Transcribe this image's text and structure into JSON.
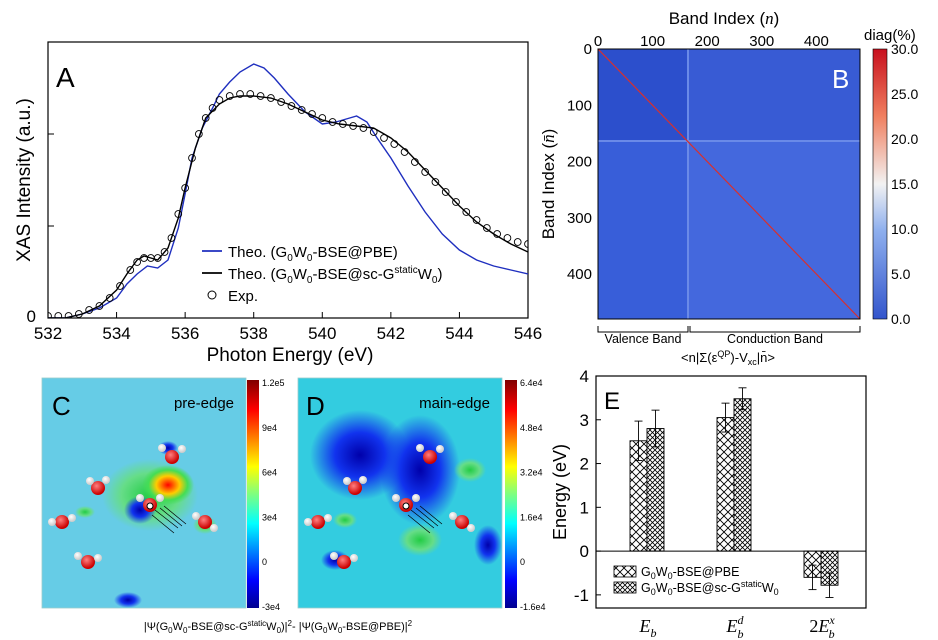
{
  "colors": {
    "theo_pbe": "#1f2fbf",
    "theo_sc": "#000000",
    "exp": "#000000",
    "heat_bg": "#3356d6",
    "heat_high": "#c8102e"
  },
  "chart_data": [
    {
      "panel": "A",
      "type": "line",
      "xlabel": "Photon Energy (eV)",
      "ylabel": "XAS Intensity (a.u.)",
      "xlim": [
        532,
        546
      ],
      "ylim": [
        0,
        1.38
      ],
      "xticks": [
        "532",
        "534",
        "536",
        "538",
        "540",
        "542",
        "544",
        "546"
      ],
      "yticks": [
        "0"
      ],
      "grid": false,
      "legend_position": "lower-right",
      "series": [
        {
          "name": "Theo. (G0W0-BSE@PBE)",
          "name_parts": {
            "a": "Theo. (G",
            "s1": "0",
            "b": "W",
            "s2": "0",
            "c": "-BSE@PBE)"
          },
          "style": "line",
          "x": [
            532.0,
            532.5,
            533.0,
            533.5,
            534.0,
            534.3,
            534.6,
            534.9,
            535.2,
            535.5,
            535.8,
            536.0,
            536.2,
            536.5,
            536.8,
            537.0,
            537.3,
            537.6,
            538.0,
            538.3,
            538.6,
            539.0,
            539.5,
            540.0,
            540.4,
            540.8,
            541.0,
            541.3,
            541.6,
            542.0,
            542.5,
            543.0,
            543.5,
            544.0,
            544.5,
            545.0,
            545.5,
            546.0
          ],
          "y": [
            0.0,
            0.0,
            0.02,
            0.05,
            0.1,
            0.17,
            0.22,
            0.26,
            0.25,
            0.29,
            0.45,
            0.62,
            0.8,
            0.95,
            1.05,
            1.12,
            1.18,
            1.23,
            1.27,
            1.25,
            1.2,
            1.12,
            1.03,
            0.97,
            0.98,
            1.0,
            1.01,
            0.98,
            0.9,
            0.8,
            0.66,
            0.53,
            0.42,
            0.34,
            0.29,
            0.26,
            0.24,
            0.22
          ]
        },
        {
          "name": "Theo. (G0W0-BSE@sc-GstaticW0)",
          "name_parts": {
            "a": "Theo. (G",
            "s1": "0",
            "b": "W",
            "s2": "0",
            "c": "-BSE@sc-G",
            "sup": "static",
            "d": "W",
            "s3": "0",
            "e": ")"
          },
          "style": "line",
          "x": [
            532.0,
            532.5,
            533.0,
            533.5,
            534.0,
            534.3,
            534.6,
            534.8,
            535.0,
            535.2,
            535.5,
            535.8,
            536.0,
            536.3,
            536.6,
            537.0,
            537.3,
            537.6,
            538.0,
            538.5,
            539.0,
            539.5,
            540.0,
            540.5,
            541.0,
            541.5,
            542.0,
            542.5,
            543.0,
            543.5,
            544.0,
            544.5,
            545.0,
            545.5,
            546.0
          ],
          "y": [
            0.0,
            0.0,
            0.02,
            0.06,
            0.14,
            0.22,
            0.29,
            0.31,
            0.3,
            0.29,
            0.35,
            0.5,
            0.65,
            0.85,
            1.0,
            1.07,
            1.1,
            1.11,
            1.11,
            1.1,
            1.07,
            1.03,
            0.99,
            0.97,
            0.96,
            0.95,
            0.9,
            0.83,
            0.74,
            0.65,
            0.56,
            0.48,
            0.42,
            0.37,
            0.33
          ]
        },
        {
          "name": "Exp.",
          "style": "markers",
          "x": [
            532.0,
            532.3,
            532.6,
            532.9,
            533.2,
            533.5,
            533.8,
            534.1,
            534.4,
            534.6,
            534.8,
            535.0,
            535.2,
            535.4,
            535.6,
            535.8,
            536.0,
            536.2,
            536.4,
            536.6,
            536.8,
            537.0,
            537.3,
            537.6,
            537.9,
            538.2,
            538.5,
            538.8,
            539.1,
            539.4,
            539.7,
            540.0,
            540.3,
            540.6,
            540.9,
            541.2,
            541.5,
            541.8,
            542.1,
            542.4,
            542.7,
            543.0,
            543.3,
            543.6,
            543.9,
            544.2,
            544.5,
            544.8,
            545.1,
            545.4,
            545.7,
            546.0
          ],
          "y": [
            0.01,
            0.01,
            0.01,
            0.02,
            0.04,
            0.06,
            0.1,
            0.16,
            0.24,
            0.28,
            0.3,
            0.3,
            0.3,
            0.33,
            0.4,
            0.52,
            0.65,
            0.8,
            0.92,
            1.0,
            1.05,
            1.09,
            1.11,
            1.12,
            1.12,
            1.11,
            1.1,
            1.08,
            1.06,
            1.04,
            1.02,
            1.0,
            0.98,
            0.97,
            0.96,
            0.95,
            0.93,
            0.9,
            0.87,
            0.83,
            0.78,
            0.73,
            0.68,
            0.63,
            0.58,
            0.53,
            0.49,
            0.45,
            0.42,
            0.4,
            0.38,
            0.37
          ]
        }
      ]
    },
    {
      "panel": "B",
      "type": "heatmap",
      "title": "Band Index (",
      "title_italic": "n",
      "title_end": ")",
      "ylabel": "Band Index (",
      "ylabel_italic": "n̄",
      "ylabel_end": ")",
      "xlim": [
        0,
        480
      ],
      "ylim": [
        0,
        480
      ],
      "xticks": [
        "0",
        "100",
        "200",
        "300",
        "400"
      ],
      "yticks": [
        "0",
        "100",
        "200",
        "300",
        "400"
      ],
      "colorbar_title": "diag(%)",
      "colorbar_ticks": [
        "30.0",
        "25.0",
        "20.0",
        "15.0",
        "10.0",
        "5.0",
        "0.0"
      ],
      "colorbar_range": [
        0,
        30
      ],
      "valence_label": "Valence Band",
      "conduction_label": "Conduction Band",
      "band_boundary": 165,
      "bottom_formula": "<n|Σ(ε",
      "bottom_formula_sup": "QP",
      "bottom_formula_mid": ")-V",
      "bottom_formula_sub": "xc",
      "bottom_formula_end": "|n̄>"
    },
    {
      "panel": "C",
      "type": "heatmap",
      "annotation": "pre-edge",
      "colorbar_ticks": [
        "1.2e5",
        "9e4",
        "6e4",
        "3e4",
        "0",
        "-3e4"
      ]
    },
    {
      "panel": "D",
      "type": "heatmap",
      "annotation": "main-edge",
      "colorbar_ticks": [
        "6.4e4",
        "4.8e4",
        "3.2e4",
        "1.6e4",
        "0",
        "-1.6e4"
      ]
    },
    {
      "panel": "E",
      "type": "bar",
      "ylabel": "Energy (eV)",
      "ylim": [
        -1.3,
        4
      ],
      "yticks": [
        "4",
        "3",
        "2",
        "1",
        "0",
        "-1"
      ],
      "categories": [
        "E_b",
        "E_b^d",
        "2E_b^x"
      ],
      "category_labels": [
        {
          "base": "E",
          "sub": "b",
          "sup": "",
          "prefix": ""
        },
        {
          "base": "E",
          "sub": "b",
          "sup": "d",
          "prefix": ""
        },
        {
          "base": "E",
          "sub": "b",
          "sup": "x",
          "prefix": "2"
        }
      ],
      "legend_position": "lower-left",
      "series": [
        {
          "name": "G0W0-BSE@PBE",
          "name_parts": {
            "a": "G",
            "s1": "0",
            "b": "W",
            "s2": "0",
            "c": "-BSE@PBE"
          },
          "values": [
            2.52,
            3.05,
            -0.6
          ],
          "errors": [
            0.45,
            0.33,
            0.28
          ]
        },
        {
          "name": "G0W0-BSE@sc-GstaticW0",
          "name_parts": {
            "a": "G",
            "s1": "0",
            "b": "W",
            "s2": "0",
            "c": "-BSE@sc-G",
            "sup": "static",
            "d": "W",
            "s3": "0"
          },
          "values": [
            2.8,
            3.48,
            -0.78
          ],
          "errors": [
            0.42,
            0.25,
            0.28
          ]
        }
      ]
    }
  ],
  "panel_letters": {
    "a": "A",
    "b": "B",
    "c": "C",
    "d": "D",
    "e": "E"
  },
  "bottom_caption": {
    "p1": "|Ψ(G",
    "s1": "0",
    "p2": "W",
    "s2": "0",
    "p3": "-BSE@sc-G",
    "sup": "static",
    "p4": "W",
    "s3": "0",
    "p5": ")|",
    "sq1": "2",
    "p6": "- |Ψ(G",
    "s4": "0",
    "p7": "W",
    "s5": "0",
    "p8": "-BSE@PBE)|",
    "sq2": "2"
  }
}
